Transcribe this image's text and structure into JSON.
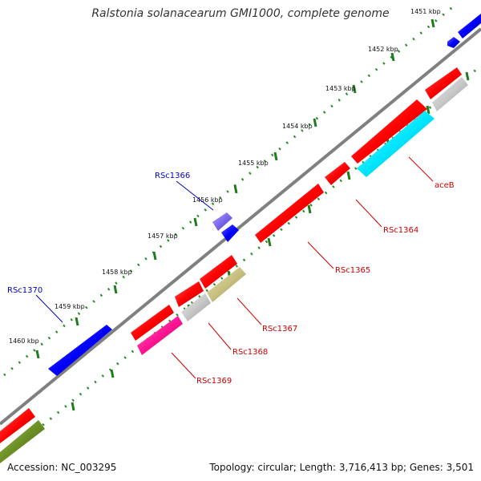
{
  "title": "Ralstonia solanacearum GMI1000, complete genome",
  "accession_text": "Accession: NC_003295",
  "summary_text": "Topology: circular; Length: 3,716,413 bp; Genes: 3,501",
  "colors": {
    "backbone": "#808080",
    "tick_minor": "#228b22",
    "label_fwd": "#0000cc",
    "label_rev": "#cc0000"
  },
  "ticks": [
    "1451 kbp",
    "1452 kbp",
    "1453 kbp",
    "1454 kbp",
    "1455 kbp",
    "1456 kbp",
    "1457 kbp",
    "1458 kbp",
    "1459 kbp",
    "1460 kbp"
  ],
  "gene_labels": [
    {
      "name": "RSc1366",
      "color": "#0000cc"
    },
    {
      "name": "RSc1370",
      "color": "#0000cc"
    },
    {
      "name": "aceB",
      "color": "#cc0000"
    },
    {
      "name": "RSc1364",
      "color": "#cc0000"
    },
    {
      "name": "RSc1365",
      "color": "#cc0000"
    },
    {
      "name": "RSc1367",
      "color": "#cc0000"
    },
    {
      "name": "RSc1368",
      "color": "#cc0000"
    },
    {
      "name": "RSc1369",
      "color": "#cc0000"
    }
  ]
}
